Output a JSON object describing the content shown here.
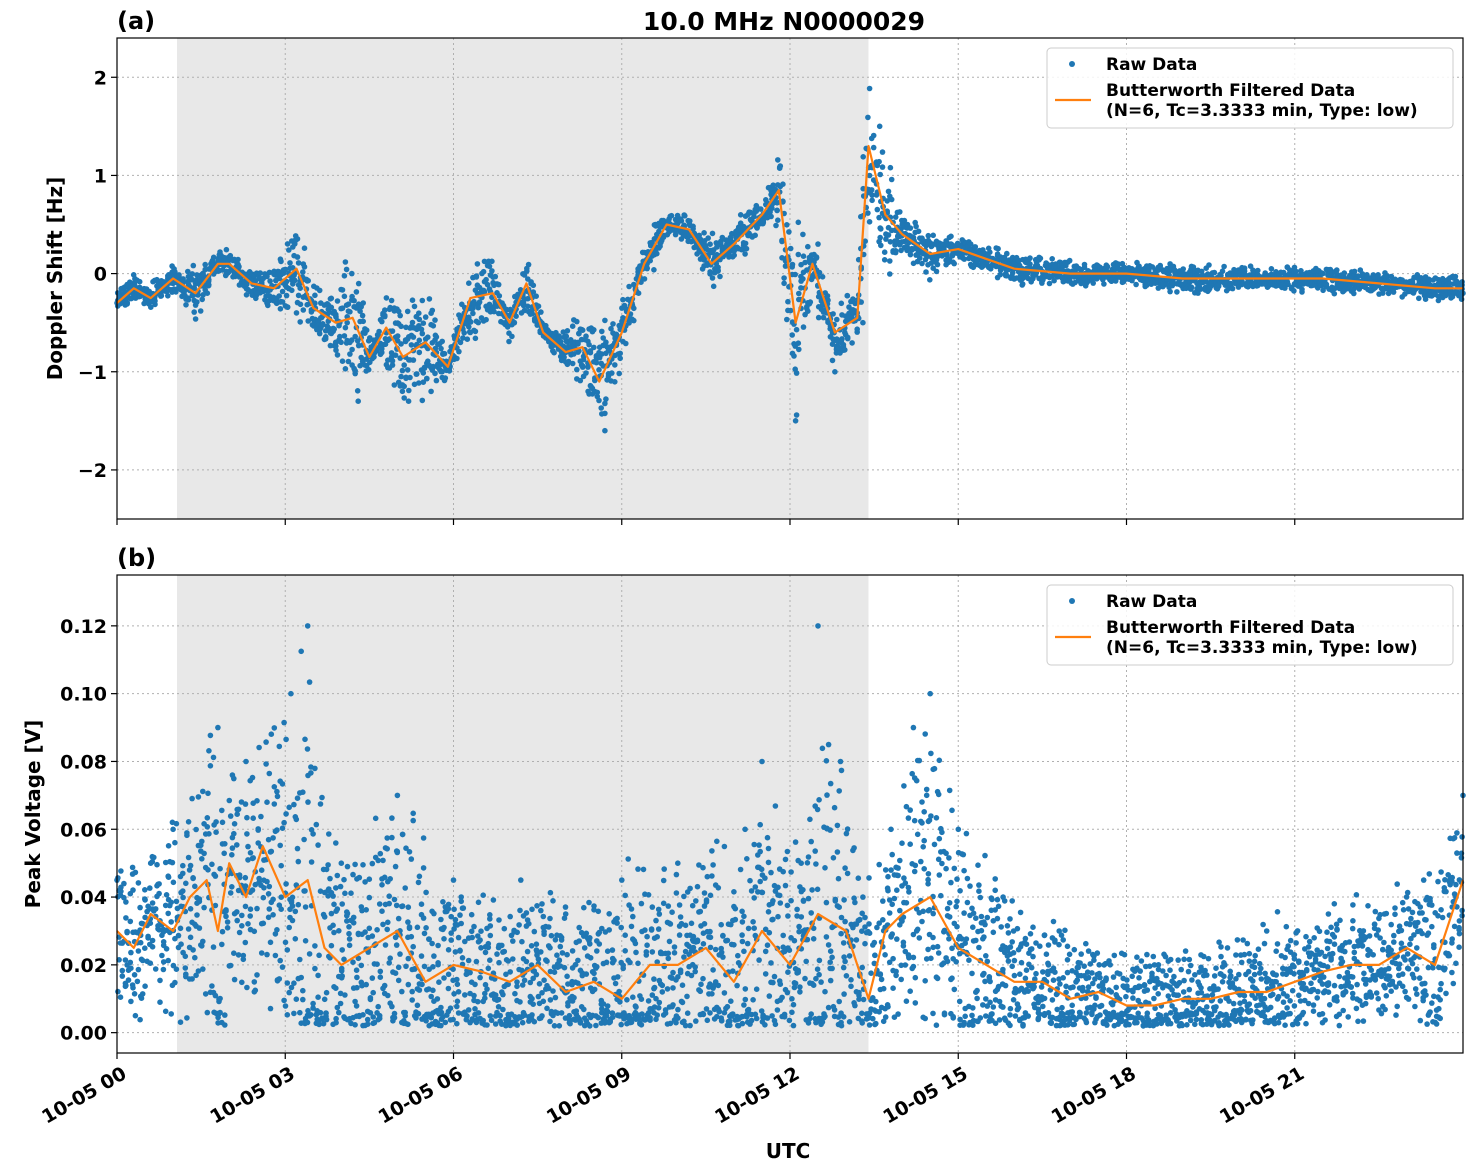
{
  "title": "10.0 MHz N0000029",
  "colors": {
    "raw": "#1f77b4",
    "filtered": "#ff7f0e",
    "shade": "#e8e8e8",
    "grid": "#b0b0b0"
  },
  "xaxis": {
    "label": "UTC",
    "tick_labels": [
      "10-05 00",
      "10-05 03",
      "10-05 06",
      "10-05 09",
      "10-05 12",
      "10-05 15",
      "10-05 18",
      "10-05 21"
    ]
  },
  "legend": {
    "raw_label": "Raw Data",
    "filtered_line1": "Butterworth Filtered Data",
    "filtered_line2": "(N=6, Tc=3.3333 min, Type: low)"
  },
  "chart_data": [
    {
      "type": "scatter",
      "panel_label": "(a)",
      "ylabel": "Doppler Shift [Hz]",
      "xlim": [
        0,
        24
      ],
      "ylim": [
        -2.5,
        2.4
      ],
      "yticks": [
        -2,
        -1,
        0,
        1,
        2
      ],
      "ytick_labels": [
        "−2",
        "−1",
        "0",
        "1",
        "2"
      ],
      "grid": true,
      "legend_position": "upper-right",
      "shaded_interval_hours": [
        1.07,
        13.4
      ],
      "series": [
        {
          "name": "Butterworth Filtered Data",
          "x": [
            0,
            0.3,
            0.6,
            1.0,
            1.4,
            1.8,
            2.0,
            2.4,
            2.8,
            3.2,
            3.5,
            3.9,
            4.2,
            4.5,
            4.8,
            5.1,
            5.5,
            5.9,
            6.3,
            6.7,
            7.0,
            7.3,
            7.6,
            8.0,
            8.3,
            8.6,
            9.0,
            9.4,
            9.8,
            10.2,
            10.6,
            11.0,
            11.5,
            11.8,
            12.1,
            12.4,
            12.8,
            13.2,
            13.4,
            13.7,
            14.0,
            14.5,
            15.0,
            15.5,
            16.0,
            17.0,
            18.0,
            19.0,
            20.0,
            21.0,
            21.5,
            22.5,
            23.5,
            24.0
          ],
          "y": [
            -0.3,
            -0.15,
            -0.25,
            -0.05,
            -0.2,
            0.1,
            0.1,
            -0.1,
            -0.15,
            0.05,
            -0.35,
            -0.5,
            -0.45,
            -0.85,
            -0.55,
            -0.85,
            -0.7,
            -0.95,
            -0.25,
            -0.2,
            -0.5,
            -0.1,
            -0.6,
            -0.8,
            -0.75,
            -1.1,
            -0.6,
            0.1,
            0.5,
            0.45,
            0.1,
            0.3,
            0.6,
            0.85,
            -0.5,
            0.1,
            -0.6,
            -0.45,
            1.3,
            0.6,
            0.4,
            0.2,
            0.25,
            0.15,
            0.05,
            0.0,
            0.0,
            -0.05,
            -0.05,
            -0.05,
            -0.05,
            -0.1,
            -0.15,
            -0.15
          ]
        },
        {
          "name": "Raw Data",
          "x": [
            0,
            0.5,
            1.0,
            1.8,
            2.5,
            3.2,
            3.9,
            4.3,
            4.6,
            5.2,
            5.6,
            6.3,
            7.2,
            8.0,
            8.4,
            8.7,
            9.3,
            9.6,
            10.2,
            11.2,
            11.7,
            12.1,
            12.5,
            12.8,
            13.3,
            13.6,
            14.0,
            14.7,
            15.4,
            16.0,
            17.5,
            19.0,
            20.5,
            21.5,
            22.5,
            24.0
          ],
          "y": [
            -0.3,
            -0.2,
            -0.1,
            0.1,
            -0.2,
            -0.4,
            -0.7,
            -1.3,
            -0.8,
            -1.3,
            -1.2,
            -0.6,
            -0.3,
            -0.9,
            -1.2,
            -1.6,
            -0.2,
            0.5,
            0.4,
            0.2,
            0.9,
            -1.5,
            0.3,
            -1.0,
            -0.5,
            1.5,
            0.5,
            0.3,
            0.2,
            0.1,
            0.0,
            0.0,
            -0.05,
            0.0,
            -0.1,
            -0.2
          ]
        }
      ]
    },
    {
      "type": "scatter",
      "panel_label": "(b)",
      "ylabel": "Peak Voltage [V]",
      "xlim": [
        0,
        24
      ],
      "ylim": [
        -0.006,
        0.135
      ],
      "yticks": [
        0.0,
        0.02,
        0.04,
        0.06,
        0.08,
        0.1,
        0.12
      ],
      "ytick_labels": [
        "0.00",
        "0.02",
        "0.04",
        "0.06",
        "0.08",
        "0.10",
        "0.12"
      ],
      "grid": true,
      "legend_position": "upper-right",
      "shaded_interval_hours": [
        1.07,
        13.4
      ],
      "series": [
        {
          "name": "Butterworth Filtered Data",
          "x": [
            0,
            0.3,
            0.6,
            1.0,
            1.3,
            1.6,
            1.8,
            2.0,
            2.3,
            2.6,
            3.0,
            3.4,
            3.7,
            4.0,
            4.5,
            5.0,
            5.5,
            6.0,
            6.5,
            7.0,
            7.5,
            8.0,
            8.5,
            9.0,
            9.5,
            10.0,
            10.5,
            11.0,
            11.5,
            12.0,
            12.5,
            13.0,
            13.4,
            13.7,
            14.0,
            14.5,
            15.0,
            15.5,
            16.0,
            16.5,
            17.0,
            17.5,
            18.0,
            18.5,
            19.0,
            19.5,
            20.0,
            20.5,
            21.0,
            21.5,
            22.0,
            22.5,
            23.0,
            23.5,
            24.0
          ],
          "y": [
            0.03,
            0.025,
            0.035,
            0.03,
            0.04,
            0.045,
            0.03,
            0.05,
            0.04,
            0.055,
            0.04,
            0.045,
            0.025,
            0.02,
            0.025,
            0.03,
            0.015,
            0.02,
            0.018,
            0.015,
            0.02,
            0.012,
            0.015,
            0.01,
            0.02,
            0.02,
            0.025,
            0.015,
            0.03,
            0.02,
            0.035,
            0.03,
            0.01,
            0.03,
            0.035,
            0.04,
            0.025,
            0.02,
            0.015,
            0.015,
            0.01,
            0.012,
            0.008,
            0.008,
            0.01,
            0.01,
            0.012,
            0.012,
            0.015,
            0.018,
            0.02,
            0.02,
            0.025,
            0.02,
            0.045
          ]
        },
        {
          "name": "Raw Data",
          "x": [
            0,
            0.6,
            1.0,
            1.8,
            2.3,
            3.1,
            3.4,
            4.0,
            5.0,
            6.0,
            7.2,
            8.0,
            9.0,
            10.0,
            11.2,
            11.5,
            12.2,
            12.5,
            12.9,
            13.3,
            13.8,
            14.2,
            14.5,
            15.0,
            15.8,
            16.8,
            17.6,
            18.5,
            19.8,
            20.5,
            21.6,
            22.6,
            23.3,
            24.0
          ],
          "y": [
            0.045,
            0.05,
            0.06,
            0.09,
            0.08,
            0.1,
            0.12,
            0.05,
            0.07,
            0.045,
            0.045,
            0.035,
            0.045,
            0.05,
            0.06,
            0.08,
            0.05,
            0.12,
            0.08,
            0.04,
            0.06,
            0.09,
            0.1,
            0.06,
            0.04,
            0.03,
            0.02,
            0.02,
            0.025,
            0.03,
            0.035,
            0.035,
            0.045,
            0.07
          ]
        }
      ]
    }
  ]
}
